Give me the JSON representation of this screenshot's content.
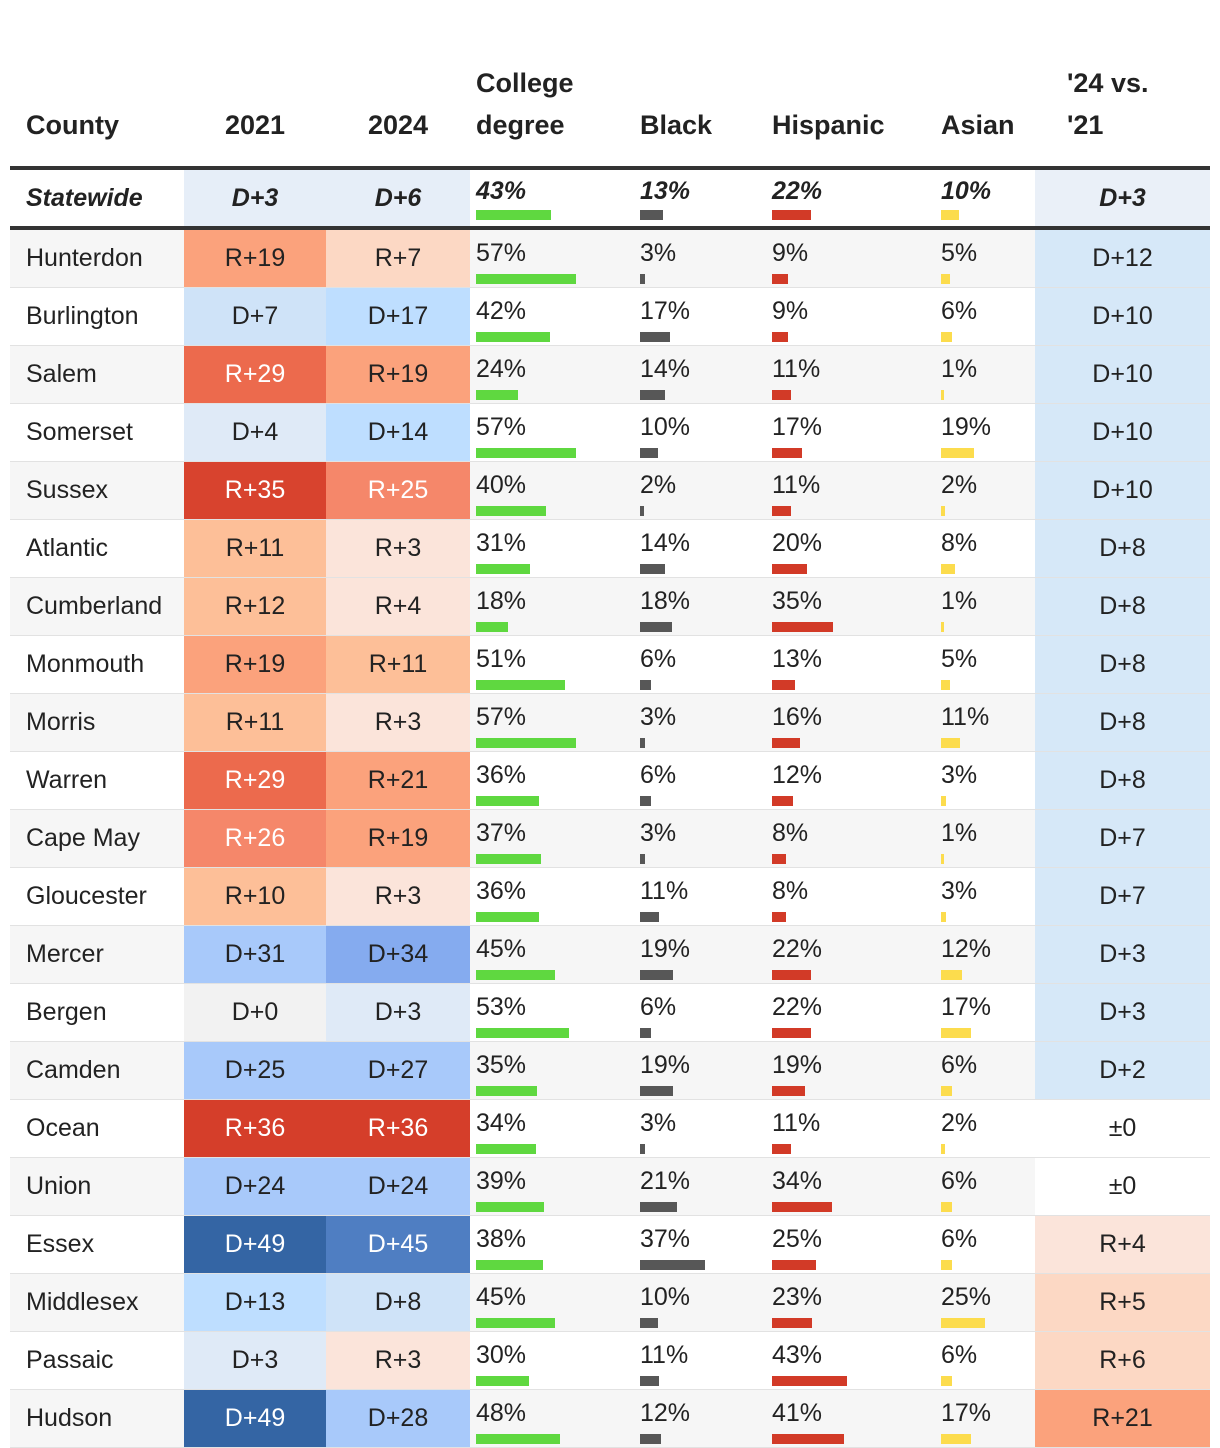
{
  "chart_data": {
    "type": "table",
    "title": "",
    "columns": [
      "County",
      "2021",
      "2024",
      "College degree",
      "Black",
      "Hispanic",
      "Asian",
      "'24 vs. '21"
    ],
    "header_lines": {
      "county": [
        "County"
      ],
      "y2021": [
        "2021"
      ],
      "y2024": [
        "2024"
      ],
      "college": [
        "College",
        "degree"
      ],
      "black": [
        "Black"
      ],
      "hispanic": [
        "Hispanic"
      ],
      "asian": [
        "Asian"
      ],
      "change": [
        "'24 vs.",
        "'21"
      ]
    },
    "statewide": {
      "name": "Statewide",
      "y2021": "D+3",
      "y2024": "D+6",
      "college": 43,
      "black": 13,
      "hispanic": 22,
      "asian": 10,
      "change": "D+3"
    },
    "rows": [
      {
        "name": "Hunterdon",
        "y2021": "R+19",
        "y2024": "R+7",
        "college": 57,
        "black": 3,
        "hispanic": 9,
        "asian": 5,
        "change": "D+12"
      },
      {
        "name": "Burlington",
        "y2021": "D+7",
        "y2024": "D+17",
        "college": 42,
        "black": 17,
        "hispanic": 9,
        "asian": 6,
        "change": "D+10"
      },
      {
        "name": "Salem",
        "y2021": "R+29",
        "y2024": "R+19",
        "college": 24,
        "black": 14,
        "hispanic": 11,
        "asian": 1,
        "change": "D+10"
      },
      {
        "name": "Somerset",
        "y2021": "D+4",
        "y2024": "D+14",
        "college": 57,
        "black": 10,
        "hispanic": 17,
        "asian": 19,
        "change": "D+10"
      },
      {
        "name": "Sussex",
        "y2021": "R+35",
        "y2024": "R+25",
        "college": 40,
        "black": 2,
        "hispanic": 11,
        "asian": 2,
        "change": "D+10"
      },
      {
        "name": "Atlantic",
        "y2021": "R+11",
        "y2024": "R+3",
        "college": 31,
        "black": 14,
        "hispanic": 20,
        "asian": 8,
        "change": "D+8"
      },
      {
        "name": "Cumberland",
        "y2021": "R+12",
        "y2024": "R+4",
        "college": 18,
        "black": 18,
        "hispanic": 35,
        "asian": 1,
        "change": "D+8"
      },
      {
        "name": "Monmouth",
        "y2021": "R+19",
        "y2024": "R+11",
        "college": 51,
        "black": 6,
        "hispanic": 13,
        "asian": 5,
        "change": "D+8"
      },
      {
        "name": "Morris",
        "y2021": "R+11",
        "y2024": "R+3",
        "college": 57,
        "black": 3,
        "hispanic": 16,
        "asian": 11,
        "change": "D+8"
      },
      {
        "name": "Warren",
        "y2021": "R+29",
        "y2024": "R+21",
        "college": 36,
        "black": 6,
        "hispanic": 12,
        "asian": 3,
        "change": "D+8"
      },
      {
        "name": "Cape May",
        "y2021": "R+26",
        "y2024": "R+19",
        "college": 37,
        "black": 3,
        "hispanic": 8,
        "asian": 1,
        "change": "D+7"
      },
      {
        "name": "Gloucester",
        "y2021": "R+10",
        "y2024": "R+3",
        "college": 36,
        "black": 11,
        "hispanic": 8,
        "asian": 3,
        "change": "D+7"
      },
      {
        "name": "Mercer",
        "y2021": "D+31",
        "y2024": "D+34",
        "college": 45,
        "black": 19,
        "hispanic": 22,
        "asian": 12,
        "change": "D+3"
      },
      {
        "name": "Bergen",
        "y2021": "D+0",
        "y2024": "D+3",
        "college": 53,
        "black": 6,
        "hispanic": 22,
        "asian": 17,
        "change": "D+3"
      },
      {
        "name": "Camden",
        "y2021": "D+25",
        "y2024": "D+27",
        "college": 35,
        "black": 19,
        "hispanic": 19,
        "asian": 6,
        "change": "D+2"
      },
      {
        "name": "Ocean",
        "y2021": "R+36",
        "y2024": "R+36",
        "college": 34,
        "black": 3,
        "hispanic": 11,
        "asian": 2,
        "change": "±0"
      },
      {
        "name": "Union",
        "y2021": "D+24",
        "y2024": "D+24",
        "college": 39,
        "black": 21,
        "hispanic": 34,
        "asian": 6,
        "change": "±0"
      },
      {
        "name": "Essex",
        "y2021": "D+49",
        "y2024": "D+45",
        "college": 38,
        "black": 37,
        "hispanic": 25,
        "asian": 6,
        "change": "R+4"
      },
      {
        "name": "Middlesex",
        "y2021": "D+13",
        "y2024": "D+8",
        "college": 45,
        "black": 10,
        "hispanic": 23,
        "asian": 25,
        "change": "R+5"
      },
      {
        "name": "Passaic",
        "y2021": "D+3",
        "y2024": "R+3",
        "college": 30,
        "black": 11,
        "hispanic": 43,
        "asian": 6,
        "change": "R+6"
      },
      {
        "name": "Hudson",
        "y2021": "D+49",
        "y2024": "D+28",
        "college": 48,
        "black": 12,
        "hispanic": 41,
        "asian": 17,
        "change": "R+21"
      }
    ],
    "bar_colors": {
      "college": "#5fd840",
      "black": "#575757",
      "hispanic": "#d23a27",
      "asian": "#fcdc4d"
    },
    "margin_palette": {
      "R": [
        [
          36,
          "#d53e2a"
        ],
        [
          34,
          "#d8432e"
        ],
        [
          28,
          "#ec6a4d"
        ],
        [
          24,
          "#f5876a"
        ],
        [
          18,
          "#fba27c"
        ],
        [
          10,
          "#fdbf98"
        ],
        [
          5,
          "#fcd8c4"
        ],
        [
          1,
          "#fbe4da"
        ]
      ],
      "D": [
        [
          46,
          "#3465a4"
        ],
        [
          40,
          "#4f7ec2"
        ],
        [
          32,
          "#85abef"
        ],
        [
          22,
          "#a8c9fa"
        ],
        [
          12,
          "#bedeff"
        ],
        [
          6,
          "#cfe3f8"
        ],
        [
          1,
          "#dfeaf7"
        ]
      ],
      "even": "#f2f2f2"
    }
  }
}
